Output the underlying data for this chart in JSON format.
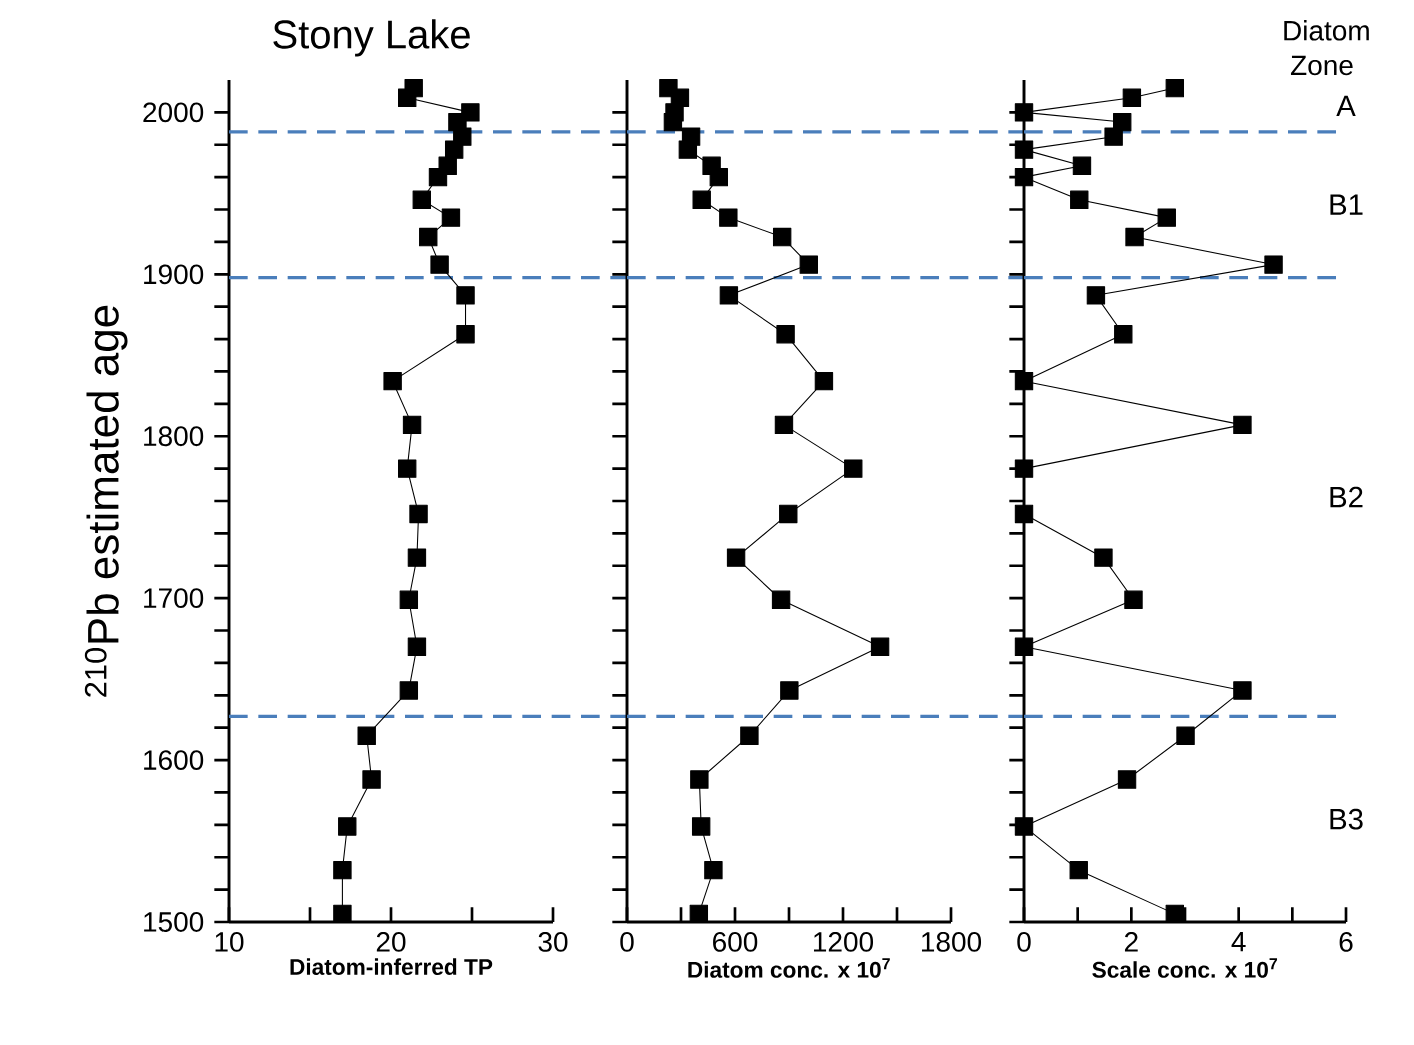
{
  "chart_data": [
    {
      "type": "line",
      "title": "Stony Lake",
      "xlabel": "Diatom-inferred TP",
      "ylabel": "$^{210}$Pb estimated  age",
      "x": [
        21.4,
        21.0,
        24.9,
        24.1,
        24.4,
        23.9,
        23.5,
        22.9,
        21.9,
        23.7,
        22.3,
        23.0,
        24.6,
        24.6,
        20.1,
        21.3,
        21.0,
        21.7,
        21.6,
        21.1,
        21.6,
        21.1,
        18.5,
        18.8,
        17.3,
        17.0,
        17.0
      ],
      "values": [
        2015,
        2009,
        2000,
        1994,
        1985,
        1977,
        1967,
        1960,
        1946,
        1935,
        1923,
        1906,
        1887,
        1863,
        1834,
        1807,
        1780,
        1752,
        1725,
        1699,
        1670,
        1643,
        1615,
        1588,
        1559,
        1532,
        1505
      ],
      "color": "#000000",
      "marker": "square",
      "xlim": [
        10,
        30
      ],
      "xticks": [
        10,
        {
          "value": 15,
          "label": null
        },
        20,
        {
          "value": 25,
          "label": null
        },
        30
      ],
      "ylim": [
        1500,
        2020
      ],
      "yticks": [
        1500,
        {
          "value": 1520,
          "label": null
        },
        {
          "value": 1540,
          "label": null
        },
        {
          "value": 1560,
          "label": null
        },
        {
          "value": 1580,
          "label": null
        },
        1600,
        {
          "value": 1620,
          "label": null
        },
        {
          "value": 1640,
          "label": null
        },
        {
          "value": 1660,
          "label": null
        },
        {
          "value": 1680,
          "label": null
        },
        1700,
        {
          "value": 1720,
          "label": null
        },
        {
          "value": 1740,
          "label": null
        },
        {
          "value": 1760,
          "label": null
        },
        {
          "value": 1780,
          "label": null
        },
        1800,
        {
          "value": 1820,
          "label": null
        },
        {
          "value": 1840,
          "label": null
        },
        {
          "value": 1860,
          "label": null
        },
        {
          "value": 1880,
          "label": null
        },
        1900,
        {
          "value": 1920,
          "label": null
        },
        {
          "value": 1940,
          "label": null
        },
        {
          "value": 1960,
          "label": null
        },
        {
          "value": 1980,
          "label": null
        },
        2000
      ],
      "ref_lines": [
        {
          "axis": "y",
          "value": 1988,
          "color": "#4a7ebb",
          "line_style": "dashed"
        },
        {
          "axis": "y",
          "value": 1898,
          "color": "#4a7ebb",
          "line_style": "dashed"
        },
        {
          "axis": "y",
          "value": 1627,
          "color": "#4a7ebb",
          "line_style": "dashed"
        }
      ]
    },
    {
      "type": "line",
      "xlabel": "Diatom conc. x 10$^{7}$",
      "x": [
        230,
        294,
        264,
        255,
        356,
        338,
        470,
        510,
        415,
        563,
        862,
        1010,
        566,
        881,
        1094,
        872,
        1257,
        896,
        606,
        856,
        1406,
        902,
        680,
        402,
        412,
        480,
        399
      ],
      "values": [
        2015,
        2009,
        2000,
        1994,
        1985,
        1977,
        1967,
        1960,
        1946,
        1935,
        1923,
        1906,
        1887,
        1863,
        1834,
        1807,
        1780,
        1752,
        1725,
        1699,
        1670,
        1643,
        1615,
        1588,
        1559,
        1532,
        1505
      ],
      "color": "#000000",
      "marker": "square",
      "xlim": [
        0,
        1800
      ],
      "xticks": [
        0,
        {
          "value": 300,
          "label": null
        },
        600,
        {
          "value": 900,
          "label": null
        },
        1200,
        {
          "value": 1500,
          "label": null
        },
        1800
      ],
      "ylim": [
        1500,
        2020
      ],
      "yticks": [
        1500,
        {
          "value": 1520,
          "label": null
        },
        {
          "value": 1540,
          "label": null
        },
        {
          "value": 1560,
          "label": null
        },
        {
          "value": 1580,
          "label": null
        },
        1600,
        {
          "value": 1620,
          "label": null
        },
        {
          "value": 1640,
          "label": null
        },
        {
          "value": 1660,
          "label": null
        },
        {
          "value": 1680,
          "label": null
        },
        1700,
        {
          "value": 1720,
          "label": null
        },
        {
          "value": 1740,
          "label": null
        },
        {
          "value": 1760,
          "label": null
        },
        {
          "value": 1780,
          "label": null
        },
        1800,
        {
          "value": 1820,
          "label": null
        },
        {
          "value": 1840,
          "label": null
        },
        {
          "value": 1860,
          "label": null
        },
        {
          "value": 1880,
          "label": null
        },
        1900,
        {
          "value": 1920,
          "label": null
        },
        {
          "value": 1940,
          "label": null
        },
        {
          "value": 1960,
          "label": null
        },
        {
          "value": 1980,
          "label": null
        },
        2000
      ],
      "tick_labels": "x",
      "ref_lines": [
        {
          "axis": "y",
          "value": 1988,
          "color": "#4a7ebb",
          "line_style": "dashed"
        },
        {
          "axis": "y",
          "value": 1898,
          "color": "#4a7ebb",
          "line_style": "dashed"
        },
        {
          "axis": "y",
          "value": 1627,
          "color": "#4a7ebb",
          "line_style": "dashed"
        }
      ]
    },
    {
      "type": "line",
      "xlabel": "Scale conc. x 10$^{7}$",
      "x": [
        2.81,
        2.01,
        0,
        1.83,
        1.67,
        0,
        1.08,
        0,
        1.03,
        2.66,
        2.06,
        4.65,
        1.34,
        1.85,
        0,
        4.07,
        0,
        0,
        1.48,
        2.04,
        0,
        4.07,
        3.01,
        1.92,
        0,
        1.02,
        2.81
      ],
      "values": [
        2015,
        2009,
        2000,
        1994,
        1985,
        1977,
        1967,
        1960,
        1946,
        1935,
        1923,
        1906,
        1887,
        1863,
        1834,
        1807,
        1780,
        1752,
        1725,
        1699,
        1670,
        1643,
        1615,
        1588,
        1559,
        1532,
        1505
      ],
      "color": "#000000",
      "marker": "square",
      "xlim": [
        0,
        6
      ],
      "xticks": [
        0,
        {
          "value": 1,
          "label": null
        },
        2,
        {
          "value": 3,
          "label": null
        },
        4,
        {
          "value": 5,
          "label": null
        },
        6
      ],
      "ylim": [
        1500,
        2020
      ],
      "yticks": [
        1500,
        {
          "value": 1520,
          "label": null
        },
        {
          "value": 1540,
          "label": null
        },
        {
          "value": 1560,
          "label": null
        },
        {
          "value": 1580,
          "label": null
        },
        1600,
        {
          "value": 1620,
          "label": null
        },
        {
          "value": 1640,
          "label": null
        },
        {
          "value": 1660,
          "label": null
        },
        {
          "value": 1680,
          "label": null
        },
        1700,
        {
          "value": 1720,
          "label": null
        },
        {
          "value": 1740,
          "label": null
        },
        {
          "value": 1760,
          "label": null
        },
        {
          "value": 1780,
          "label": null
        },
        1800,
        {
          "value": 1820,
          "label": null
        },
        {
          "value": 1840,
          "label": null
        },
        {
          "value": 1860,
          "label": null
        },
        {
          "value": 1880,
          "label": null
        },
        1900,
        {
          "value": 1920,
          "label": null
        },
        {
          "value": 1940,
          "label": null
        },
        {
          "value": 1960,
          "label": null
        },
        {
          "value": 1980,
          "label": null
        },
        2000
      ],
      "tick_labels": "x",
      "ref_lines": [
        {
          "axis": "y",
          "value": 1988,
          "color": "#4a7ebb",
          "line_style": "dashed"
        },
        {
          "axis": "y",
          "value": 1898,
          "color": "#4a7ebb",
          "line_style": "dashed"
        },
        {
          "axis": "y",
          "value": 1627,
          "color": "#4a7ebb",
          "line_style": "dashed"
        }
      ],
      "annotations": [
        "Diatom Zone",
        "A",
        "B1",
        "B2",
        "B3"
      ]
    }
  ]
}
